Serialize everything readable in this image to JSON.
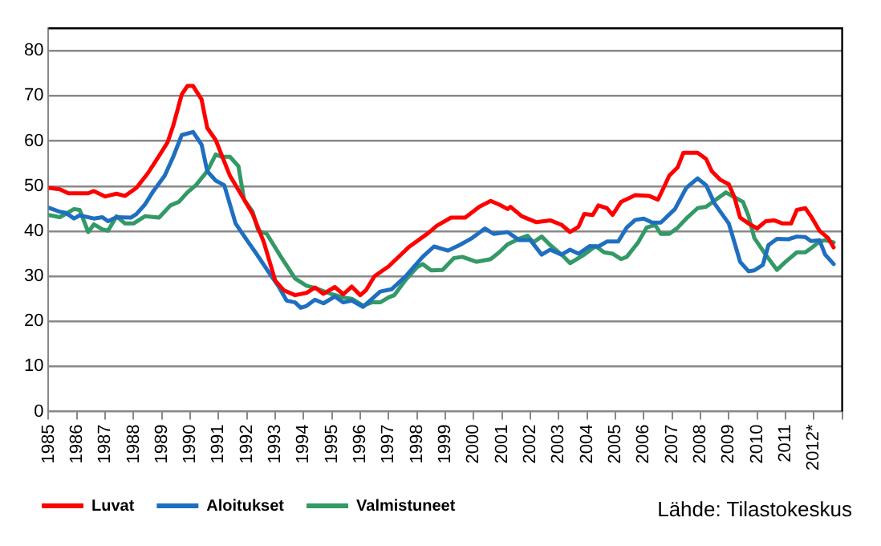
{
  "chart_data": {
    "type": "line",
    "xlim": [
      1985,
      2013
    ],
    "xticks": [
      {
        "value": 1985,
        "label": "1985"
      },
      {
        "value": 1986,
        "label": "1986"
      },
      {
        "value": 1987,
        "label": "1987"
      },
      {
        "value": 1988,
        "label": "1988"
      },
      {
        "value": 1989,
        "label": "1989"
      },
      {
        "value": 1990,
        "label": "1990"
      },
      {
        "value": 1991,
        "label": "1991"
      },
      {
        "value": 1992,
        "label": "1992"
      },
      {
        "value": 1993,
        "label": "1993"
      },
      {
        "value": 1994,
        "label": "1994"
      },
      {
        "value": 1995,
        "label": "1995"
      },
      {
        "value": 1996,
        "label": "1996"
      },
      {
        "value": 1997,
        "label": "1997"
      },
      {
        "value": 1998,
        "label": "1998"
      },
      {
        "value": 1999,
        "label": "1999"
      },
      {
        "value": 2000,
        "label": "2000"
      },
      {
        "value": 2001,
        "label": "2001"
      },
      {
        "value": 2002,
        "label": "2002"
      },
      {
        "value": 2003,
        "label": "2003"
      },
      {
        "value": 2004,
        "label": "2004"
      },
      {
        "value": 2005,
        "label": "2005"
      },
      {
        "value": 2006,
        "label": "2006"
      },
      {
        "value": 2007,
        "label": "2007"
      },
      {
        "value": 2008,
        "label": "2008"
      },
      {
        "value": 2009,
        "label": "2009"
      },
      {
        "value": 2010,
        "label": "2010"
      },
      {
        "value": 2011,
        "label": "2011"
      },
      {
        "value": 2012,
        "label": "2012*"
      },
      {
        "value": 2013,
        "label": null
      }
    ],
    "ylim": [
      0,
      85
    ],
    "yticks": [
      0,
      10,
      20,
      30,
      40,
      50,
      60,
      70,
      80
    ],
    "grid": "y",
    "legend": "bottom",
    "marker": "none",
    "line_style": "solid",
    "annotations": [
      "Lähde: Tilastokeskus"
    ],
    "series": [
      {
        "name": "Luvat",
        "color": "#ff0000",
        "x": [
          1985,
          1985.4,
          1985.7,
          1986.4,
          1986.6,
          1987,
          1987.4,
          1987.7,
          1988.1,
          1988.5,
          1988.9,
          1989.2,
          1989.4,
          1989.7,
          1989.9,
          1990.1,
          1990.4,
          1990.6,
          1990.9,
          1991.4,
          1991.9,
          1992.2,
          1992.6,
          1993,
          1993.3,
          1993.7,
          1994.1,
          1994.4,
          1994.7,
          1995.1,
          1995.4,
          1995.7,
          1996,
          1996.2,
          1996.5,
          1997,
          1997.7,
          1998.4,
          1998.7,
          1999.2,
          1999.7,
          2000.2,
          2000.6,
          2000.9,
          2001.2,
          2001.3,
          2001.7,
          2002.2,
          2002.7,
          2003.1,
          2003.4,
          2003.7,
          2003.9,
          2004.2,
          2004.4,
          2004.7,
          2004.9,
          2005.2,
          2005.7,
          2006.2,
          2006.5,
          2006.7,
          2006.9,
          2007.2,
          2007.4,
          2007.9,
          2008.2,
          2008.4,
          2008.7,
          2009,
          2009.2,
          2009.4,
          2009.7,
          2010,
          2010.3,
          2010.6,
          2010.9,
          2011.2,
          2011.4,
          2011.7,
          2011.9,
          2012.2,
          2012.5,
          2012.7
        ],
        "values": [
          49.6,
          49.3,
          48.4,
          48.4,
          48.9,
          47.7,
          48.3,
          47.8,
          49.6,
          52.8,
          56.7,
          59.7,
          63.4,
          70.3,
          72.2,
          72.2,
          69.2,
          62.9,
          60.2,
          52.3,
          47,
          43.8,
          37.5,
          29,
          26.9,
          25.8,
          26.3,
          27.5,
          26.1,
          27.6,
          26,
          27.7,
          25.8,
          26.9,
          30,
          32.2,
          36.4,
          39.6,
          41.2,
          43,
          43,
          45.4,
          46.7,
          45.9,
          44.9,
          45.4,
          43.3,
          42,
          42.4,
          41.4,
          39.8,
          41,
          43.8,
          43.6,
          45.7,
          45.1,
          43.6,
          46.5,
          48,
          47.8,
          47,
          49.6,
          52.3,
          54.2,
          57.4,
          57.4,
          56,
          53.3,
          51.4,
          50.4,
          47.5,
          43,
          41.7,
          40.6,
          42.2,
          42.4,
          41.7,
          41.7,
          44.7,
          45.1,
          43.3,
          40.1,
          38.5,
          36.4
        ]
      },
      {
        "name": "Aloitukset",
        "color": "#1f6fc0",
        "x": [
          1985,
          1985.4,
          1985.6,
          1985.9,
          1986.1,
          1986.6,
          1986.9,
          1987.1,
          1987.4,
          1987.9,
          1988.1,
          1988.4,
          1988.7,
          1989.1,
          1989.4,
          1989.7,
          1990.1,
          1990.4,
          1990.6,
          1990.9,
          1991.2,
          1991.6,
          1992,
          1992.3,
          1992.8,
          1993.1,
          1993.4,
          1993.7,
          1993.9,
          1994.1,
          1994.4,
          1994.7,
          1995.1,
          1995.4,
          1995.7,
          1996.1,
          1996.7,
          1997.1,
          1997.6,
          1998.2,
          1998.6,
          1999.1,
          1999.5,
          1999.9,
          2000.4,
          2000.7,
          2001.2,
          2001.6,
          2002,
          2002.4,
          2002.7,
          2003.1,
          2003.4,
          2003.7,
          2004.1,
          2004.4,
          2004.7,
          2005.1,
          2005.4,
          2005.7,
          2006,
          2006.3,
          2006.6,
          2007.1,
          2007.5,
          2007.9,
          2008.2,
          2008.5,
          2009,
          2009.2,
          2009.4,
          2009.7,
          2009.9,
          2010.2,
          2010.4,
          2010.7,
          2011.1,
          2011.4,
          2011.7,
          2011.9,
          2012.2,
          2012.4,
          2012.7
        ],
        "values": [
          45.2,
          44.3,
          44.1,
          42.8,
          43.5,
          42.8,
          43.1,
          42.2,
          43.1,
          43,
          43.8,
          45.9,
          48.9,
          52.3,
          56.5,
          61.3,
          62,
          59.2,
          53.3,
          51.2,
          50.2,
          41.7,
          38,
          35.3,
          30.6,
          27.9,
          24.6,
          24.2,
          23,
          23.4,
          24.8,
          24,
          25.5,
          24.2,
          24.6,
          23.2,
          26.6,
          27.1,
          30,
          34.3,
          36.6,
          35.7,
          36.9,
          38.3,
          40.6,
          39.4,
          39.8,
          38,
          38,
          34.8,
          35.9,
          34.8,
          35.9,
          35,
          36.7,
          36.6,
          37.7,
          37.7,
          40.8,
          42.5,
          42.8,
          41.9,
          41.9,
          44.9,
          49.6,
          51.7,
          50.2,
          46.1,
          41.7,
          37.5,
          33.2,
          31.1,
          31.3,
          32.5,
          36.9,
          38.3,
          38.2,
          38.8,
          38.7,
          37.8,
          38,
          34.8,
          32.7
        ]
      },
      {
        "name": "Valmistuneet",
        "color": "#339966",
        "x": [
          1985,
          1985.4,
          1985.6,
          1985.9,
          1986.1,
          1986.4,
          1986.6,
          1986.9,
          1987.1,
          1987.4,
          1987.7,
          1988,
          1988.4,
          1988.9,
          1989.3,
          1989.6,
          1989.9,
          1990.2,
          1990.6,
          1990.9,
          1991.1,
          1991.4,
          1991.7,
          1991.9,
          1992.2,
          1992.4,
          1992.7,
          1993.2,
          1993.7,
          1994.1,
          1994.4,
          1995,
          1995.4,
          1995.7,
          1996.1,
          1996.4,
          1996.7,
          1997,
          1997.2,
          1997.6,
          1998,
          1998.2,
          1998.5,
          1998.9,
          1999.3,
          1999.6,
          2000.1,
          2000.6,
          2000.9,
          2001.2,
          2001.6,
          2001.9,
          2002.1,
          2002.4,
          2002.7,
          2003.1,
          2003.4,
          2003.9,
          2004.3,
          2004.6,
          2004.9,
          2005.2,
          2005.4,
          2005.8,
          2006.1,
          2006.4,
          2006.6,
          2006.9,
          2007.2,
          2007.5,
          2007.9,
          2008.2,
          2008.5,
          2008.9,
          2009.2,
          2009.5,
          2009.7,
          2009.9,
          2010.3,
          2010.7,
          2011,
          2011.4,
          2011.7,
          2011.9,
          2012.2,
          2012.4,
          2012.7
        ],
        "values": [
          43.6,
          43.1,
          43.8,
          44.9,
          44.7,
          39.8,
          41.5,
          40.4,
          40.1,
          43.3,
          41.7,
          41.7,
          43.3,
          43,
          45.7,
          46.5,
          48.6,
          50.2,
          53.3,
          57,
          56.5,
          56.5,
          54.4,
          47,
          44.3,
          40.1,
          39.4,
          34.3,
          29.5,
          27.9,
          27.4,
          26,
          25.3,
          25,
          23.5,
          24.2,
          24.2,
          25.3,
          25.8,
          29.2,
          32,
          32.7,
          31.3,
          31.4,
          34,
          34.3,
          33.2,
          33.8,
          35.3,
          37.1,
          38.3,
          39,
          37.5,
          38.8,
          36.9,
          34.8,
          32.9,
          34.8,
          36.7,
          35.3,
          35,
          33.8,
          34.3,
          37.5,
          40.8,
          41.4,
          39.4,
          39.4,
          40.8,
          42.8,
          45.1,
          45.4,
          46.8,
          48.6,
          47.5,
          46.5,
          43.3,
          38.5,
          34.8,
          31.4,
          33.2,
          35.3,
          35.3,
          36.2,
          37.7,
          38,
          37.5
        ]
      }
    ]
  }
}
